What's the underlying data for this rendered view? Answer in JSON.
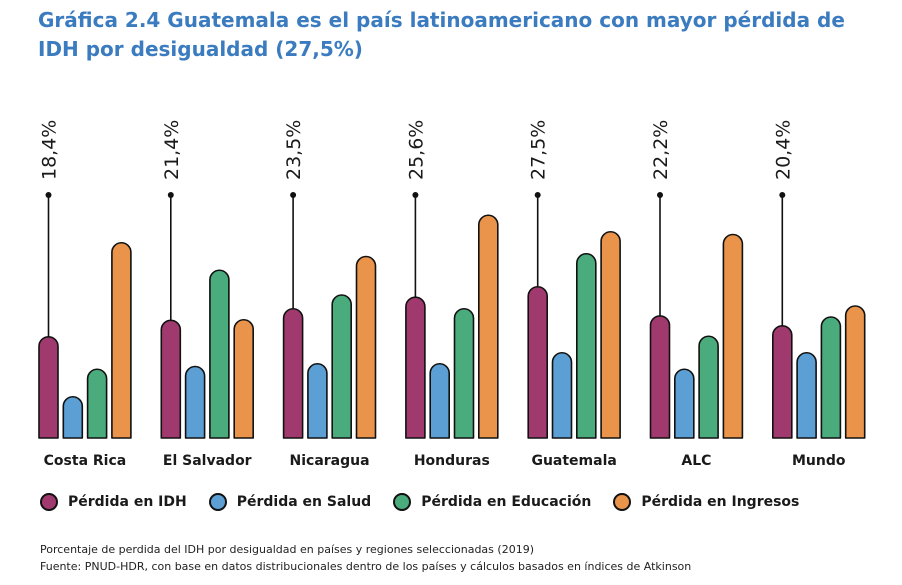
{
  "title": "Gráfica 2.4 Guatemala es el país latinoamericano con mayor pérdida de IDH por desigualdad (27,5%)",
  "chart_data": {
    "type": "bar",
    "categories": [
      "Costa Rica",
      "El Salvador",
      "Nicaragua",
      "Honduras",
      "Guatemala",
      "ALC",
      "Mundo"
    ],
    "idh_loss_labels": [
      "18,4%",
      "21,4%",
      "23,5%",
      "25,6%",
      "27,5%",
      "22,2%",
      "20,4%"
    ],
    "series": [
      {
        "name": "Pérdida en IDH",
        "color": "#a03a6e",
        "values": [
          18.4,
          21.4,
          23.5,
          25.6,
          27.5,
          22.2,
          20.4
        ]
      },
      {
        "name": "Pérdida en Salud",
        "color": "#5b9fd4",
        "values": [
          7.5,
          13.0,
          13.5,
          13.5,
          15.5,
          12.5,
          15.5
        ]
      },
      {
        "name": "Pérdida en Educación",
        "color": "#4aab7d",
        "values": [
          12.5,
          30.5,
          26.0,
          23.5,
          33.5,
          18.5,
          22.0
        ]
      },
      {
        "name": "Pérdida en Ingresos",
        "color": "#e9944a",
        "values": [
          35.5,
          21.5,
          33.0,
          40.5,
          37.5,
          37.0,
          24.0
        ]
      }
    ],
    "ylim": [
      0,
      45
    ],
    "grid": false,
    "legend_position": "bottom"
  },
  "notes": [
    "Porcentaje de perdida del IDH por desigualdad en países y regiones seleccionadas (2019)",
    "Fuente: PNUD-HDR, con base en datos distribucionales dentro de los países y cálculos basados en índices de Atkinson"
  ]
}
